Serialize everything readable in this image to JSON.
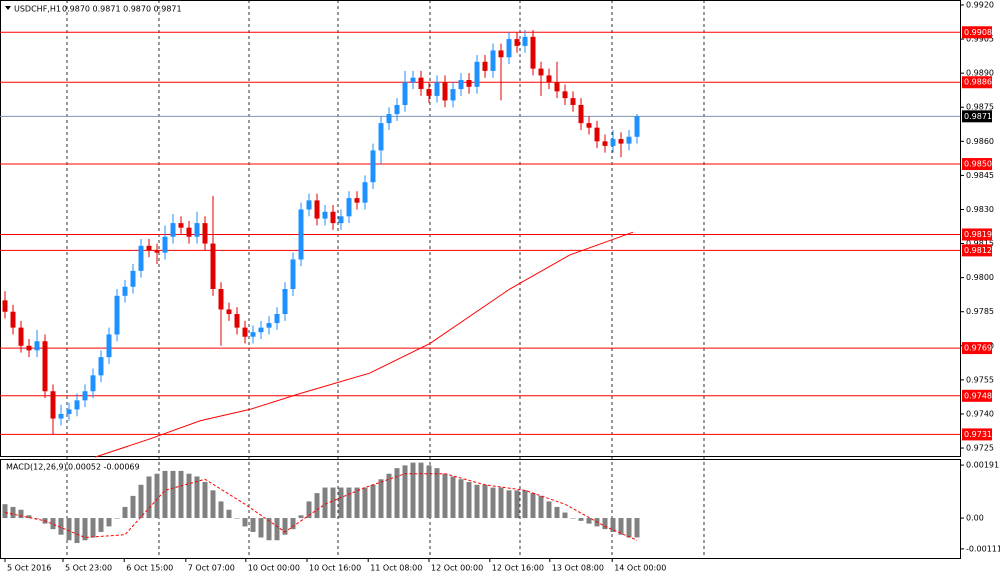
{
  "chart_data": [
    {
      "type": "candlestick",
      "title": "USDCHF,H1",
      "subtitle": "0.9870 0.9871 0.9870 0.9871",
      "xlim": [
        -0.625,
        119.375
      ],
      "ylim": [
        0.97215,
        0.99222
      ],
      "up_color": "#1e90ff",
      "down_color": "#e00000",
      "level_color": "#ff0000",
      "last_color": "#7c94b4",
      "yticks": [
        {
          "value": 0.992,
          "label": "0.9920"
        },
        {
          "value": 0.9905,
          "label": "0.9905"
        },
        {
          "value": 0.989,
          "label": "0.9890"
        },
        {
          "value": 0.9875,
          "label": "0.9875"
        },
        {
          "value": 0.986,
          "label": "0.9860"
        },
        {
          "value": 0.9845,
          "label": "0.9845"
        },
        {
          "value": 0.983,
          "label": "0.9830"
        },
        {
          "value": 0.9815,
          "label": "0.9815"
        },
        {
          "value": 0.98,
          "label": "0.9800"
        },
        {
          "value": 0.9785,
          "label": "0.9785"
        },
        {
          "value": 0.977,
          "label": "0.9770"
        },
        {
          "value": 0.9755,
          "label": "0.9755"
        },
        {
          "value": 0.974,
          "label": "0.9740"
        },
        {
          "value": 0.9725,
          "label": "0.9725"
        }
      ],
      "levels": [
        {
          "value": 0.9908,
          "label": "0.9908"
        },
        {
          "value": 0.9886,
          "label": "0.9886"
        },
        {
          "value": 0.985,
          "label": "0.9850"
        },
        {
          "value": 0.9819,
          "label": "0.9819"
        },
        {
          "value": 0.9812,
          "label": "0.9812"
        },
        {
          "value": 0.9769,
          "label": "0.9769"
        },
        {
          "value": 0.9748,
          "label": "0.9748"
        },
        {
          "value": 0.9731,
          "label": "0.9731"
        }
      ],
      "last_price": 0.9871,
      "xticks": [
        {
          "value": 0,
          "label": "5 Oct 2016"
        },
        {
          "value": 7.25,
          "label": "5 Oct 23:00"
        },
        {
          "value": 14.9,
          "label": "6 Oct 15:00"
        },
        {
          "value": 22.6,
          "label": "7 Oct 07:00"
        },
        {
          "value": 30.1,
          "label": "10 Oct 00:00"
        },
        {
          "value": 37.75,
          "label": "10 Oct 16:00"
        },
        {
          "value": 45.4,
          "label": "11 Oct 08:00"
        },
        {
          "value": 53,
          "label": "12 Oct 00:00"
        },
        {
          "value": 60.6,
          "label": "12 Oct 16:00"
        },
        {
          "value": 68.1,
          "label": "13 Oct 08:00"
        },
        {
          "value": 75.9,
          "label": "14 Oct 00:00"
        }
      ],
      "candles": [
        [
          0.979,
          0.9794,
          0.9782,
          0.9785
        ],
        [
          0.9785,
          0.9788,
          0.9775,
          0.9778
        ],
        [
          0.9778,
          0.9781,
          0.9767,
          0.977
        ],
        [
          0.977,
          0.9773,
          0.9765,
          0.9768
        ],
        [
          0.9768,
          0.9777,
          0.9765,
          0.9772
        ],
        [
          0.9772,
          0.9775,
          0.9747,
          0.975
        ],
        [
          0.975,
          0.9753,
          0.9731,
          0.9738
        ],
        [
          0.9738,
          0.9744,
          0.9735,
          0.974
        ],
        [
          0.974,
          0.9745,
          0.9737,
          0.9742
        ],
        [
          0.9742,
          0.9749,
          0.9739,
          0.9746
        ],
        [
          0.9746,
          0.9753,
          0.9743,
          0.975
        ],
        [
          0.975,
          0.976,
          0.9747,
          0.9757
        ],
        [
          0.9757,
          0.9768,
          0.9754,
          0.9765
        ],
        [
          0.9765,
          0.9778,
          0.9762,
          0.9775
        ],
        [
          0.9775,
          0.9795,
          0.9772,
          0.9792
        ],
        [
          0.9792,
          0.9799,
          0.9789,
          0.9796
        ],
        [
          0.9796,
          0.9806,
          0.9793,
          0.9803
        ],
        [
          0.9803,
          0.9817,
          0.98,
          0.9814
        ],
        [
          0.9814,
          0.9817,
          0.9809,
          0.9812
        ],
        [
          0.9812,
          0.9815,
          0.9806,
          0.9811
        ],
        [
          0.9811,
          0.9823,
          0.9808,
          0.9818
        ],
        [
          0.9818,
          0.9828,
          0.9815,
          0.9824
        ],
        [
          0.9824,
          0.9827,
          0.9819,
          0.9822
        ],
        [
          0.9822,
          0.9825,
          0.9815,
          0.9818
        ],
        [
          0.9818,
          0.9829,
          0.9815,
          0.9824
        ],
        [
          0.9824,
          0.9827,
          0.9812,
          0.9815
        ],
        [
          0.9815,
          0.9836,
          0.9792,
          0.9795
        ],
        [
          0.9795,
          0.9798,
          0.977,
          0.9786
        ],
        [
          0.9786,
          0.9789,
          0.9781,
          0.9784
        ],
        [
          0.9784,
          0.9787,
          0.9775,
          0.9778
        ],
        [
          0.9778,
          0.9781,
          0.9771,
          0.9774
        ],
        [
          0.9774,
          0.9779,
          0.9771,
          0.9776
        ],
        [
          0.9776,
          0.9781,
          0.9773,
          0.9778
        ],
        [
          0.9778,
          0.9783,
          0.9775,
          0.978
        ],
        [
          0.978,
          0.9787,
          0.9777,
          0.9784
        ],
        [
          0.9784,
          0.9798,
          0.9781,
          0.9795
        ],
        [
          0.9795,
          0.9811,
          0.9792,
          0.9808
        ],
        [
          0.9808,
          0.9833,
          0.9805,
          0.983
        ],
        [
          0.983,
          0.9837,
          0.9827,
          0.9834
        ],
        [
          0.9834,
          0.9837,
          0.9823,
          0.9826
        ],
        [
          0.9826,
          0.9832,
          0.9823,
          0.9829
        ],
        [
          0.9829,
          0.9832,
          0.9821,
          0.9824
        ],
        [
          0.9824,
          0.983,
          0.9821,
          0.9827
        ],
        [
          0.9827,
          0.9838,
          0.9824,
          0.9835
        ],
        [
          0.9835,
          0.9838,
          0.983,
          0.9833
        ],
        [
          0.9833,
          0.9845,
          0.983,
          0.9842
        ],
        [
          0.9842,
          0.9859,
          0.9839,
          0.9856
        ],
        [
          0.9856,
          0.9871,
          0.985,
          0.9868
        ],
        [
          0.9868,
          0.9875,
          0.9865,
          0.9872
        ],
        [
          0.9872,
          0.9879,
          0.9869,
          0.9876
        ],
        [
          0.9876,
          0.9891,
          0.9873,
          0.9886
        ],
        [
          0.9886,
          0.9891,
          0.9883,
          0.9888
        ],
        [
          0.9888,
          0.9891,
          0.988,
          0.9883
        ],
        [
          0.9883,
          0.9886,
          0.9877,
          0.988
        ],
        [
          0.988,
          0.9889,
          0.9877,
          0.9886
        ],
        [
          0.9886,
          0.9889,
          0.9875,
          0.9878
        ],
        [
          0.9878,
          0.9886,
          0.9875,
          0.9883
        ],
        [
          0.9883,
          0.989,
          0.988,
          0.9887
        ],
        [
          0.9887,
          0.989,
          0.9881,
          0.9884
        ],
        [
          0.9884,
          0.9898,
          0.9881,
          0.9895
        ],
        [
          0.9895,
          0.9898,
          0.9888,
          0.9891
        ],
        [
          0.9891,
          0.9903,
          0.9888,
          0.99
        ],
        [
          0.99,
          0.9903,
          0.9878,
          0.9897
        ],
        [
          0.9897,
          0.9908,
          0.9894,
          0.9905
        ],
        [
          0.9905,
          0.9908,
          0.9899,
          0.9902
        ],
        [
          0.9902,
          0.9909,
          0.9899,
          0.9906
        ],
        [
          0.9906,
          0.9909,
          0.9889,
          0.9892
        ],
        [
          0.9892,
          0.9895,
          0.988,
          0.9889
        ],
        [
          0.9889,
          0.9892,
          0.9883,
          0.9886
        ],
        [
          0.9886,
          0.9895,
          0.9879,
          0.9882
        ],
        [
          0.9882,
          0.9885,
          0.9876,
          0.9879
        ],
        [
          0.9879,
          0.9882,
          0.9873,
          0.9876
        ],
        [
          0.9876,
          0.9879,
          0.9865,
          0.9868
        ],
        [
          0.9868,
          0.9871,
          0.9863,
          0.9866
        ],
        [
          0.9866,
          0.9869,
          0.9857,
          0.986
        ],
        [
          0.986,
          0.9863,
          0.9855,
          0.9858
        ],
        [
          0.9858,
          0.9865,
          0.9855,
          0.9861
        ],
        [
          0.9861,
          0.9864,
          0.9853,
          0.9859
        ],
        [
          0.9859,
          0.9865,
          0.9856,
          0.9862
        ],
        [
          0.9862,
          0.9872,
          0.9859,
          0.9871
        ]
      ],
      "ma": {
        "color": "#ff0000",
        "x": [
          11.25,
          18.1,
          24.4,
          30.6,
          36.9,
          45.6,
          53.1,
          63.1,
          70.6,
          78.5
        ],
        "values": [
          0.9721,
          0.9729,
          0.9737,
          0.9742,
          0.9749,
          0.9758,
          0.9771,
          0.9795,
          0.981,
          0.982
        ]
      }
    },
    {
      "type": "macd",
      "title": "MACD(12,26,9)",
      "subtitle": "0.00052 -0.00069",
      "ylim": [
        -0.00144,
        0.00213
      ],
      "yticks": [
        0.00191,
        {
          "value": 0,
          "label": "0.00"
        },
        -0.00111
      ],
      "hist_color": "#808080",
      "signal_color": "#ff0000",
      "values": [
        0.0005,
        0.0004,
        0.0003,
        0.0001,
        0,
        -0.0002,
        -0.0004,
        -0.0006,
        -0.0008,
        -0.0009,
        -0.0008,
        -0.0007,
        -0.0005,
        -0.0003,
        0,
        0.0004,
        0.0008,
        0.0012,
        0.0015,
        0.0016,
        0.0017,
        0.0017,
        0.0017,
        0.0016,
        0.0015,
        0.0013,
        0.001,
        0.0006,
        0.0003,
        0,
        -0.0003,
        -0.0005,
        -0.0007,
        -0.0008,
        -0.0008,
        -0.0006,
        -0.0004,
        0.0001,
        0.0006,
        0.0009,
        0.0011,
        0.0011,
        0.0011,
        0.0011,
        0.0011,
        0.0011,
        0.0012,
        0.0014,
        0.0016,
        0.0018,
        0.0019,
        0.002,
        0.002,
        0.0019,
        0.0018,
        0.0016,
        0.0015,
        0.0014,
        0.0013,
        0.0012,
        0.0012,
        0.0011,
        0.0011,
        0.001,
        0.001,
        0.001,
        0.0009,
        0.0008,
        0.0006,
        0.0004,
        0.0002,
        0,
        -0.0001,
        -0.0002,
        -0.0003,
        -0.0004,
        -0.0005,
        -0.0006,
        -0.0007,
        -0.0007
      ],
      "signal": {
        "x": [
          0,
          5,
          10,
          15,
          20,
          25,
          30,
          35,
          40,
          45,
          50,
          55,
          60,
          65,
          70,
          75,
          79
        ],
        "values": [
          0.0002,
          -0.0001,
          -0.0007,
          -0.0006,
          0.001,
          0.0014,
          0.0005,
          -0.0005,
          0.0005,
          0.0011,
          0.0016,
          0.0016,
          0.0012,
          0.001,
          0.0005,
          -0.0003,
          -0.0008
        ]
      }
    }
  ]
}
